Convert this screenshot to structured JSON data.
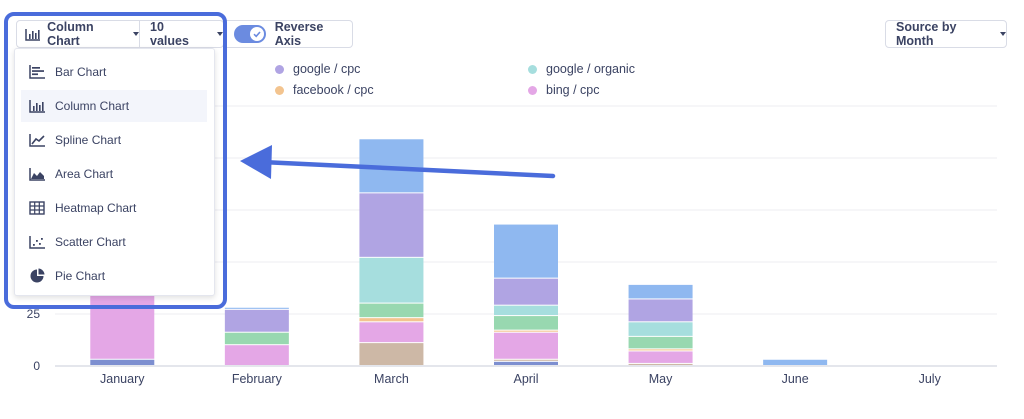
{
  "toolbar": {
    "chart_type_label": "Column Chart",
    "values_label": "10 values",
    "reverse_axis_label": "Reverse Axis",
    "reverse_axis_on": true,
    "source_label": "Source by Month"
  },
  "dropdown": {
    "items": [
      {
        "label": "Bar Chart",
        "icon": "bar-chart-icon"
      },
      {
        "label": "Column Chart",
        "icon": "column-chart-icon",
        "selected": true
      },
      {
        "label": "Spline Chart",
        "icon": "spline-chart-icon"
      },
      {
        "label": "Area Chart",
        "icon": "area-chart-icon"
      },
      {
        "label": "Heatmap Chart",
        "icon": "heatmap-chart-icon"
      },
      {
        "label": "Scatter Chart",
        "icon": "scatter-chart-icon"
      },
      {
        "label": "Pie Chart",
        "icon": "pie-chart-icon"
      }
    ]
  },
  "colors": {
    "google_cpc": "#b0a4e3",
    "google_organic": "#a6dede",
    "facebook_cpc": "#f3c48f",
    "bing_cpc": "#e4a7e6",
    "blue": "#8fb8f0",
    "green": "#98d8b0",
    "tan": "#cdb8a6",
    "pink2": "#efa8c8",
    "navy": "#7d8fd0",
    "highlight": "#4a6cdb"
  },
  "chart_data": {
    "type": "bar",
    "stacked": true,
    "categories": [
      "January",
      "February",
      "March",
      "April",
      "May",
      "June",
      "July"
    ],
    "ylim": [
      0,
      125
    ],
    "yticks_shown": [
      "25",
      "0"
    ],
    "legend": [
      "google / cpc",
      "google / organic",
      "facebook / cpc",
      "bing / cpc"
    ],
    "series": [
      {
        "name": "",
        "color_key": "navy",
        "values": [
          3,
          0,
          0,
          2,
          0,
          0,
          0
        ]
      },
      {
        "name": "",
        "color_key": "tan",
        "values": [
          0,
          0,
          11,
          1,
          1,
          0,
          0
        ]
      },
      {
        "name": "bing / cpc",
        "color_key": "bing_cpc",
        "values": [
          35,
          10,
          10,
          13,
          6,
          0,
          0
        ]
      },
      {
        "name": "facebook / cpc",
        "color_key": "facebook_cpc",
        "values": [
          0,
          0,
          2,
          1,
          1,
          0,
          0
        ]
      },
      {
        "name": "",
        "color_key": "green",
        "values": [
          0,
          6,
          7,
          7,
          6,
          0,
          0
        ]
      },
      {
        "name": "google / organic",
        "color_key": "google_organic",
        "values": [
          0,
          0,
          22,
          5,
          7,
          0,
          0
        ]
      },
      {
        "name": "google / cpc",
        "color_key": "google_cpc",
        "values": [
          0,
          11,
          31,
          13,
          11,
          0,
          0
        ]
      },
      {
        "name": "",
        "color_key": "blue",
        "values": [
          0,
          1,
          26,
          26,
          7,
          3,
          0
        ]
      },
      {
        "name": "",
        "color_key": "green",
        "values": [
          3,
          0,
          0,
          0,
          0,
          0,
          0
        ]
      }
    ]
  }
}
